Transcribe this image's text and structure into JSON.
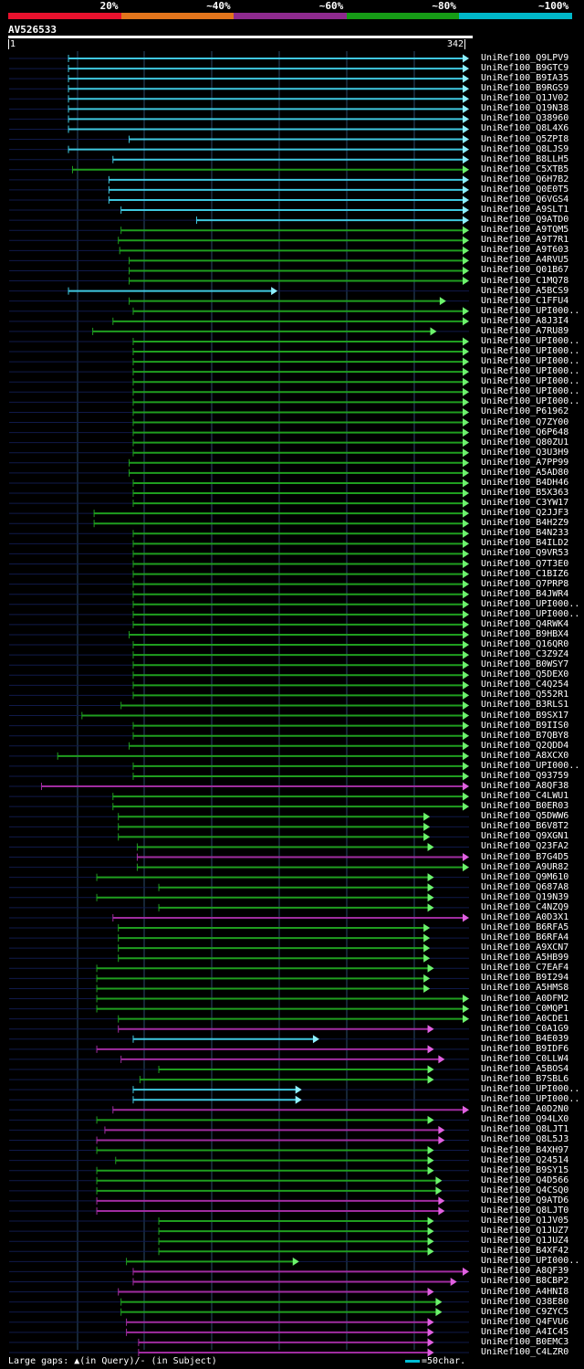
{
  "query": {
    "name": "AV526533",
    "start": "1",
    "end": "342",
    "length": 342
  },
  "identity_scale": [
    {
      "label": "20%",
      "color": "#e8112d"
    },
    {
      "label": "~40%",
      "color": "#e2751c"
    },
    {
      "label": "~60%",
      "color": "#8e2a8e"
    },
    {
      "label": "~80%",
      "color": "#169c16"
    },
    {
      "label": "~100%",
      "color": "#00b7c8"
    }
  ],
  "colors": {
    "cyan": "#3fc8e0",
    "green": "#1f9e1f",
    "magenta": "#a02ca0",
    "thin": "#101a4a",
    "arrow_green": "#6cf26c",
    "arrow_cyan": "#8ef0ff",
    "arrow_magenta": "#e060e0",
    "gap": "#ffffaa",
    "grid": "#2a4a6a"
  },
  "legend": {
    "text": "Large gaps: ▲(in Query)/- (in Subject)",
    "scale": "=50char."
  },
  "hits": [
    {
      "label": "UniRef100_Q9LPV9",
      "color": "cyan",
      "start": 45,
      "end": 342
    },
    {
      "label": "UniRef100_B9GTC9",
      "color": "cyan",
      "start": 45,
      "end": 342
    },
    {
      "label": "UniRef100_B9IA35",
      "color": "cyan",
      "start": 45,
      "end": 342
    },
    {
      "label": "UniRef100_B9RGS9",
      "color": "cyan",
      "start": 45,
      "end": 342
    },
    {
      "label": "UniRef100_Q1JV02",
      "color": "cyan",
      "start": 45,
      "end": 342
    },
    {
      "label": "UniRef100_Q19N38",
      "color": "cyan",
      "start": 45,
      "end": 342
    },
    {
      "label": "UniRef100_Q38960",
      "color": "cyan",
      "start": 45,
      "end": 342
    },
    {
      "label": "UniRef100_Q8L4X6",
      "color": "cyan",
      "start": 45,
      "end": 342
    },
    {
      "label": "UniRef100_Q5ZPI8",
      "color": "cyan",
      "start": 90,
      "end": 342
    },
    {
      "label": "UniRef100_Q8LJS9",
      "color": "cyan",
      "start": 45,
      "end": 342
    },
    {
      "label": "UniRef100_B8LLH5",
      "color": "cyan",
      "start": 78,
      "end": 342
    },
    {
      "label": "UniRef100_C5XTB5",
      "color": "green",
      "start": 48,
      "end": 342
    },
    {
      "label": "UniRef100_Q6H7B2",
      "color": "cyan",
      "start": 75,
      "end": 342
    },
    {
      "label": "UniRef100_Q0E0T5",
      "color": "cyan",
      "start": 75,
      "end": 342
    },
    {
      "label": "UniRef100_Q6VGS4",
      "color": "cyan",
      "start": 75,
      "end": 342
    },
    {
      "label": "UniRef100_A9SLT1",
      "color": "cyan",
      "start": 84,
      "end": 342
    },
    {
      "label": "UniRef100_Q9ATD0",
      "color": "cyan",
      "start": 140,
      "end": 342
    },
    {
      "label": "UniRef100_A9TQM5",
      "color": "green",
      "start": 84,
      "end": 342
    },
    {
      "label": "UniRef100_A9T7R1",
      "color": "green",
      "start": 82,
      "end": 342
    },
    {
      "label": "UniRef100_A9T603",
      "color": "green",
      "start": 83,
      "end": 342
    },
    {
      "label": "UniRef100_A4RVU5",
      "color": "green",
      "start": 90,
      "end": 342
    },
    {
      "label": "UniRef100_Q01B67",
      "color": "green",
      "start": 90,
      "end": 342
    },
    {
      "label": "UniRef100_C1MQ78",
      "color": "green",
      "start": 90,
      "end": 342
    },
    {
      "label": "UniRef100_A5BCS9",
      "color": "cyan",
      "start": 45,
      "end": 200
    },
    {
      "label": "UniRef100_C1FFU4",
      "color": "green",
      "start": 90,
      "end": 325
    },
    {
      "label": "UniRef100_UPI000..",
      "color": "green",
      "start": 93,
      "end": 342
    },
    {
      "label": "UniRef100_A8J3I4",
      "color": "green",
      "start": 78,
      "end": 342
    },
    {
      "label": "UniRef100_A7RU89",
      "color": "green",
      "start": 63,
      "end": 318
    },
    {
      "label": "UniRef100_UPI000..",
      "color": "green",
      "start": 93,
      "end": 342
    },
    {
      "label": "UniRef100_UPI000..",
      "color": "green",
      "start": 93,
      "end": 342
    },
    {
      "label": "UniRef100_UPI000..",
      "color": "green",
      "start": 93,
      "end": 342
    },
    {
      "label": "UniRef100_UPI000..",
      "color": "green",
      "start": 93,
      "end": 342
    },
    {
      "label": "UniRef100_UPI000..",
      "color": "green",
      "start": 93,
      "end": 342
    },
    {
      "label": "UniRef100_UPI000..",
      "color": "green",
      "start": 93,
      "end": 342
    },
    {
      "label": "UniRef100_UPI000..",
      "color": "green",
      "start": 93,
      "end": 342
    },
    {
      "label": "UniRef100_P61962",
      "color": "green",
      "start": 93,
      "end": 342
    },
    {
      "label": "UniRef100_Q7ZY00",
      "color": "green",
      "start": 93,
      "end": 342
    },
    {
      "label": "UniRef100_Q6P648",
      "color": "green",
      "start": 93,
      "end": 342
    },
    {
      "label": "UniRef100_Q80ZU1",
      "color": "green",
      "start": 93,
      "end": 342
    },
    {
      "label": "UniRef100_Q3U3H9",
      "color": "green",
      "start": 93,
      "end": 342
    },
    {
      "label": "UniRef100_A7PP99",
      "color": "green",
      "start": 90,
      "end": 342
    },
    {
      "label": "UniRef100_A5AD80",
      "color": "green",
      "start": 90,
      "end": 342
    },
    {
      "label": "UniRef100_B4DH46",
      "color": "green",
      "start": 93,
      "end": 342
    },
    {
      "label": "UniRef100_B5X363",
      "color": "green",
      "start": 93,
      "end": 342
    },
    {
      "label": "UniRef100_C3YW17",
      "color": "green",
      "start": 93,
      "end": 342
    },
    {
      "label": "UniRef100_Q2JJF3",
      "color": "green",
      "start": 64,
      "end": 342
    },
    {
      "label": "UniRef100_B4H2Z9",
      "color": "green",
      "start": 64,
      "end": 342
    },
    {
      "label": "UniRef100_B4N233",
      "color": "green",
      "start": 93,
      "end": 342
    },
    {
      "label": "UniRef100_B4ILD2",
      "color": "green",
      "start": 93,
      "end": 342
    },
    {
      "label": "UniRef100_Q9VR53",
      "color": "green",
      "start": 93,
      "end": 342
    },
    {
      "label": "UniRef100_Q7T3E0",
      "color": "green",
      "start": 93,
      "end": 342
    },
    {
      "label": "UniRef100_C1BIZ6",
      "color": "green",
      "start": 93,
      "end": 342
    },
    {
      "label": "UniRef100_Q7PRP8",
      "color": "green",
      "start": 93,
      "end": 342
    },
    {
      "label": "UniRef100_B4JWR4",
      "color": "green",
      "start": 93,
      "end": 342
    },
    {
      "label": "UniRef100_UPI000..",
      "color": "green",
      "start": 93,
      "end": 342
    },
    {
      "label": "UniRef100_UPI000..",
      "color": "green",
      "start": 93,
      "end": 342
    },
    {
      "label": "UniRef100_Q4RWK4",
      "color": "green",
      "start": 93,
      "end": 342
    },
    {
      "label": "UniRef100_B9HBX4",
      "color": "green",
      "start": 90,
      "end": 342
    },
    {
      "label": "UniRef100_Q16QR0",
      "color": "green",
      "start": 93,
      "end": 342
    },
    {
      "label": "UniRef100_C3Z9Z4",
      "color": "green",
      "start": 93,
      "end": 342
    },
    {
      "label": "UniRef100_B0WSY7",
      "color": "green",
      "start": 93,
      "end": 342
    },
    {
      "label": "UniRef100_Q5DEX0",
      "color": "green",
      "start": 93,
      "end": 342
    },
    {
      "label": "UniRef100_C4Q254",
      "color": "green",
      "start": 93,
      "end": 342
    },
    {
      "label": "UniRef100_Q552R1",
      "color": "green",
      "start": 93,
      "end": 342
    },
    {
      "label": "UniRef100_B3RLS1",
      "color": "green",
      "start": 84,
      "end": 342
    },
    {
      "label": "UniRef100_B9SX17",
      "color": "green",
      "start": 55,
      "end": 342
    },
    {
      "label": "UniRef100_B9IIS0",
      "color": "green",
      "start": 93,
      "end": 342
    },
    {
      "label": "UniRef100_B7QBY8",
      "color": "green",
      "start": 93,
      "end": 342
    },
    {
      "label": "UniRef100_Q2QDD4",
      "color": "green",
      "start": 90,
      "end": 342
    },
    {
      "label": "UniRef100_A8XCX0",
      "color": "green",
      "start": 37,
      "end": 342
    },
    {
      "label": "UniRef100_UPI000..",
      "color": "green",
      "start": 93,
      "end": 342
    },
    {
      "label": "UniRef100_Q93759",
      "color": "green",
      "start": 93,
      "end": 342
    },
    {
      "label": "UniRef100_A8QF38",
      "color": "magenta",
      "start": 25,
      "end": 342
    },
    {
      "label": "UniRef100_C4LWU1",
      "color": "green",
      "start": 78,
      "end": 342
    },
    {
      "label": "UniRef100_B0ER03",
      "color": "green",
      "start": 78,
      "end": 342
    },
    {
      "label": "UniRef100_Q5DWW6",
      "color": "green",
      "start": 82,
      "end": 313
    },
    {
      "label": "UniRef100_B6V8T2",
      "color": "green",
      "start": 82,
      "end": 313
    },
    {
      "label": "UniRef100_Q9XGN1",
      "color": "green",
      "start": 82,
      "end": 313
    },
    {
      "label": "UniRef100_Q23FA2",
      "color": "green",
      "start": 96,
      "end": 316
    },
    {
      "label": "UniRef100_B7G4D5",
      "color": "magenta",
      "start": 96,
      "end": 342
    },
    {
      "label": "UniRef100_A9UR82",
      "color": "green",
      "start": 96,
      "end": 342
    },
    {
      "label": "UniRef100_Q9M610",
      "color": "green",
      "start": 66,
      "end": 316
    },
    {
      "label": "UniRef100_Q687A8",
      "color": "green",
      "start": 112,
      "end": 316
    },
    {
      "label": "UniRef100_Q19N39",
      "color": "green",
      "start": 66,
      "end": 316
    },
    {
      "label": "UniRef100_C4NZQ9",
      "color": "green",
      "start": 112,
      "end": 316
    },
    {
      "label": "UniRef100_A0D3X1",
      "color": "magenta",
      "start": 78,
      "end": 342
    },
    {
      "label": "UniRef100_B6RFA5",
      "color": "green",
      "start": 82,
      "end": 313
    },
    {
      "label": "UniRef100_B6RFA4",
      "color": "green",
      "start": 82,
      "end": 313
    },
    {
      "label": "UniRef100_A9XCN7",
      "color": "green",
      "start": 82,
      "end": 313
    },
    {
      "label": "UniRef100_A5HB99",
      "color": "green",
      "start": 82,
      "end": 313
    },
    {
      "label": "UniRef100_C7EAF4",
      "color": "green",
      "start": 66,
      "end": 316
    },
    {
      "label": "UniRef100_B9I294",
      "color": "green",
      "start": 66,
      "end": 313
    },
    {
      "label": "UniRef100_A5HMS8",
      "color": "green",
      "start": 66,
      "end": 313
    },
    {
      "label": "UniRef100_A0DFM2",
      "color": "green",
      "start": 66,
      "end": 342
    },
    {
      "label": "UniRef100_C0MQP1",
      "color": "green",
      "start": 66,
      "end": 342
    },
    {
      "label": "UniRef100_A0CDE1",
      "color": "green",
      "start": 82,
      "end": 342
    },
    {
      "label": "UniRef100_C0A1G9",
      "color": "magenta",
      "start": 82,
      "end": 316
    },
    {
      "label": "UniRef100_B4E039",
      "color": "cyan",
      "start": 93,
      "end": 231
    },
    {
      "label": "UniRef100_B9IDF6",
      "color": "magenta",
      "start": 66,
      "end": 316
    },
    {
      "label": "UniRef100_C0LLW4",
      "color": "magenta",
      "start": 84,
      "end": 324
    },
    {
      "label": "UniRef100_A5BOS4",
      "color": "green",
      "start": 112,
      "end": 316
    },
    {
      "label": "UniRef100_B7SBL6",
      "color": "green",
      "start": 98,
      "end": 316
    },
    {
      "label": "UniRef100_UPI000..",
      "color": "cyan",
      "start": 93,
      "end": 218
    },
    {
      "label": "UniRef100_UPI000..",
      "color": "cyan",
      "start": 93,
      "end": 218
    },
    {
      "label": "UniRef100_A0D2N0",
      "color": "magenta",
      "start": 78,
      "end": 342
    },
    {
      "label": "UniRef100_Q94LX0",
      "color": "green",
      "start": 66,
      "end": 316
    },
    {
      "label": "UniRef100_Q8LJT1",
      "color": "magenta",
      "start": 72,
      "end": 324
    },
    {
      "label": "UniRef100_Q8L5J3",
      "color": "magenta",
      "start": 66,
      "end": 324
    },
    {
      "label": "UniRef100_B4XH97",
      "color": "green",
      "start": 66,
      "end": 316
    },
    {
      "label": "UniRef100_Q24514",
      "color": "green",
      "start": 80,
      "end": 316
    },
    {
      "label": "UniRef100_B9SY15",
      "color": "green",
      "start": 66,
      "end": 316
    },
    {
      "label": "UniRef100_Q4D566",
      "color": "green",
      "start": 66,
      "end": 322
    },
    {
      "label": "UniRef100_Q4CSQ0",
      "color": "green",
      "start": 66,
      "end": 322
    },
    {
      "label": "UniRef100_Q9ATD6",
      "color": "magenta",
      "start": 66,
      "end": 324
    },
    {
      "label": "UniRef100_Q8LJT0",
      "color": "magenta",
      "start": 66,
      "end": 324
    },
    {
      "label": "UniRef100_Q1JV05",
      "color": "green",
      "start": 112,
      "end": 316
    },
    {
      "label": "UniRef100_Q1JUZ7",
      "color": "green",
      "start": 112,
      "end": 316
    },
    {
      "label": "UniRef100_Q1JUZ4",
      "color": "green",
      "start": 112,
      "end": 316
    },
    {
      "label": "UniRef100_B4XF42",
      "color": "green",
      "start": 112,
      "end": 316
    },
    {
      "label": "UniRef100_UPI000..",
      "color": "green",
      "start": 88,
      "end": 216
    },
    {
      "label": "UniRef100_A8QF39",
      "color": "magenta",
      "start": 93,
      "end": 342
    },
    {
      "label": "UniRef100_B8CBP2",
      "color": "magenta",
      "start": 93,
      "end": 333
    },
    {
      "label": "UniRef100_A4HNI8",
      "color": "magenta",
      "start": 82,
      "end": 316
    },
    {
      "label": "UniRef100_Q38E80",
      "color": "green",
      "start": 84,
      "end": 322
    },
    {
      "label": "UniRef100_C9ZYC5",
      "color": "green",
      "start": 84,
      "end": 322
    },
    {
      "label": "UniRef100_Q4FVU6",
      "color": "magenta",
      "start": 88,
      "end": 316
    },
    {
      "label": "UniRef100_A4IC45",
      "color": "magenta",
      "start": 88,
      "end": 316
    },
    {
      "label": "UniRef100_B0EMC3",
      "color": "magenta",
      "start": 97,
      "end": 316
    },
    {
      "label": "UniRef100_C4LZR0",
      "color": "magenta",
      "start": 97,
      "end": 316
    }
  ]
}
